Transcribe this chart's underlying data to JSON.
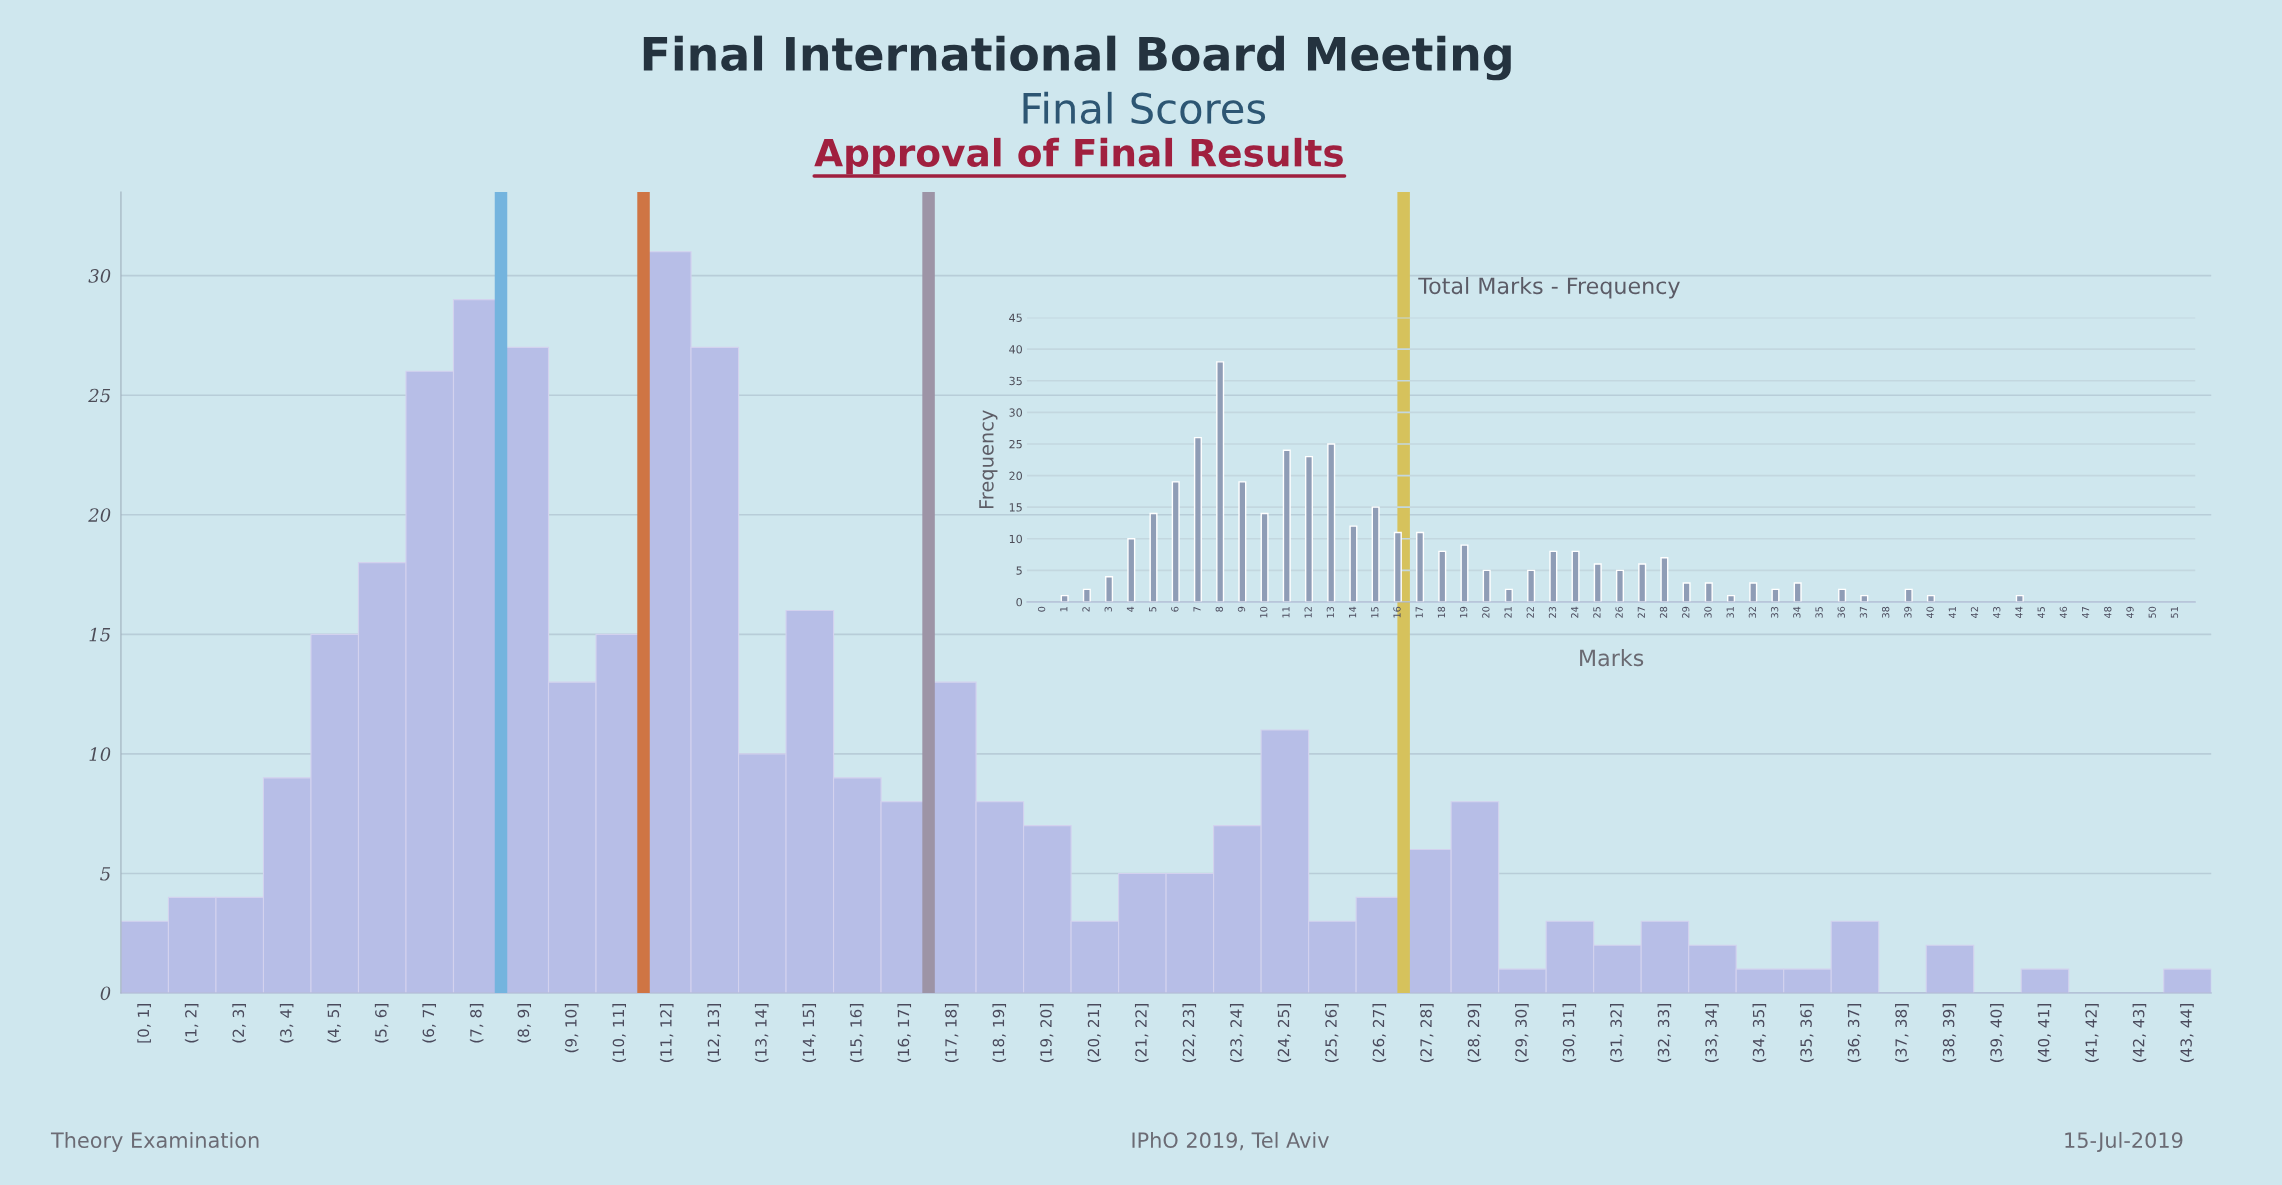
{
  "chart_data": [
    {
      "type": "bar",
      "title": "Final International Board Meeting",
      "subtitle": "Final Scores",
      "annotations": [
        "Approval of Final Results",
        "Theory Examination",
        "IPhO 2019, Tel Aviv",
        "15-Jul-2019"
      ],
      "categories": [
        "[0, 1]",
        "(1, 2]",
        "(2, 3]",
        "(3, 4]",
        "(4, 5]",
        "(5, 6]",
        "(6, 7]",
        "(7, 8]",
        "(8, 9]",
        "(9, 10]",
        "(10, 11]",
        "(11, 12]",
        "(12, 13]",
        "(13, 14]",
        "(14, 15]",
        "(15, 16]",
        "(16, 17]",
        "(17, 18]",
        "(18, 19]",
        "(19, 20]",
        "(20, 21]",
        "(21, 22]",
        "(22, 23]",
        "(23, 24]",
        "(24, 25]",
        "(25, 26]",
        "(26, 27]",
        "(27, 28]",
        "(28, 29]",
        "(29, 30]",
        "(30, 31]",
        "(31, 32]",
        "(32, 33]",
        "(33, 34]",
        "(34, 35]",
        "(35, 36]",
        "(36, 37]",
        "(37, 38]",
        "(38, 39]",
        "(39, 40]",
        "(40, 41]",
        "(41, 42]",
        "(42, 43]",
        "(43, 44]"
      ],
      "values": [
        3,
        4,
        4,
        9,
        15,
        18,
        26,
        29,
        27,
        13,
        15,
        31,
        27,
        10,
        16,
        9,
        8,
        13,
        8,
        7,
        3,
        5,
        5,
        7,
        11,
        3,
        4,
        6,
        8,
        1,
        3,
        2,
        3,
        2,
        1,
        1,
        3,
        0,
        2,
        0,
        1,
        0,
        0,
        1
      ],
      "color": "#b7bee7",
      "ylim": [
        0,
        33.5
      ],
      "yticks": [
        0,
        5,
        10,
        15,
        20,
        25,
        30
      ],
      "grid": "y",
      "ref_lines": [
        {
          "axis": "x",
          "value": "(8, 9]",
          "color": "#74b4de"
        },
        {
          "axis": "x",
          "value": "(11, 12]",
          "color": "#cf7544"
        },
        {
          "axis": "x",
          "value": "(17, 18]",
          "color": "#9d94a6"
        },
        {
          "axis": "x",
          "value": "(27, 28]",
          "color": "#d6c25c"
        }
      ]
    },
    {
      "type": "bar",
      "title": "Total Marks - Frequency",
      "xlabel": "Marks",
      "ylabel": "Frequency",
      "color": "#8f9db6",
      "categories": [
        "0",
        "1",
        "2",
        "3",
        "4",
        "5",
        "6",
        "7",
        "8",
        "9",
        "10",
        "11",
        "12",
        "13",
        "14",
        "15",
        "16",
        "17",
        "18",
        "19",
        "20",
        "21",
        "22",
        "23",
        "24",
        "25",
        "26",
        "27",
        "28",
        "29",
        "30",
        "31",
        "32",
        "33",
        "34",
        "35",
        "36",
        "37",
        "38",
        "39",
        "40",
        "41",
        "42",
        "43",
        "44",
        "45",
        "46",
        "47",
        "48",
        "49",
        "50",
        "51"
      ],
      "values": [
        0,
        1,
        2,
        4,
        10,
        14,
        19,
        26,
        38,
        19,
        14,
        24,
        23,
        25,
        12,
        15,
        11,
        11,
        8,
        9,
        5,
        2,
        5,
        8,
        8,
        6,
        5,
        6,
        7,
        3,
        3,
        1,
        3,
        2,
        3,
        0,
        2,
        1,
        0,
        2,
        1,
        0,
        0,
        0,
        1,
        0,
        0,
        0,
        0,
        0,
        0,
        0
      ],
      "ylim": [
        0,
        45
      ],
      "yticks": [
        0,
        5,
        10,
        15,
        20,
        25,
        30,
        35,
        40,
        45
      ],
      "grid": "y"
    }
  ]
}
